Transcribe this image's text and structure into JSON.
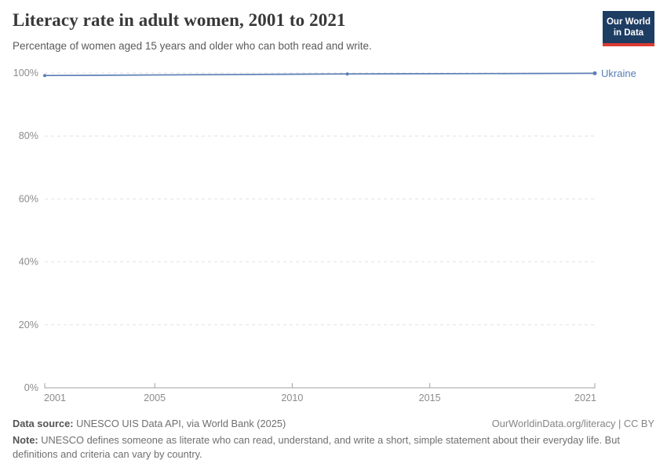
{
  "header": {
    "title": "Literacy rate in adult women, 2001 to 2021",
    "subtitle": "Percentage of women aged 15 years and older who can both read and write.",
    "logo": {
      "line1": "Our World",
      "line2": "in Data"
    }
  },
  "chart_data": {
    "type": "line",
    "title": "Literacy rate in adult women, 2001 to 2021",
    "xlabel": "",
    "ylabel": "",
    "xlim": [
      2001,
      2021
    ],
    "ylim": [
      0,
      100
    ],
    "x_ticks": [
      2001,
      2005,
      2010,
      2015,
      2021
    ],
    "y_ticks": [
      0,
      20,
      40,
      60,
      80,
      100
    ],
    "y_tick_suffix": "%",
    "grid": "dashed-horizontal",
    "legend": "end-of-line-label",
    "series": [
      {
        "name": "Ukraine",
        "x": [
          2001,
          2012,
          2021
        ],
        "values": [
          99.2,
          99.7,
          99.9
        ]
      }
    ]
  },
  "footer": {
    "datasource_label": "Data source:",
    "datasource_value": " UNESCO UIS Data API, via World Bank (2025)",
    "attribution": "OurWorldinData.org/literacy | CC BY",
    "note_label": "Note:",
    "note_value": " UNESCO defines someone as literate who can read, understand, and write a short, simple statement about their everyday life. But definitions and criteria can vary by country."
  },
  "colors": {
    "line": "#5b7fb5",
    "series_label": "#577eb4",
    "grid": "#e2e2e2",
    "axis": "#a0a0a0",
    "tick_text": "#8c8c8c",
    "logo_bg": "#1d3d63",
    "logo_accent": "#dc3b32"
  }
}
